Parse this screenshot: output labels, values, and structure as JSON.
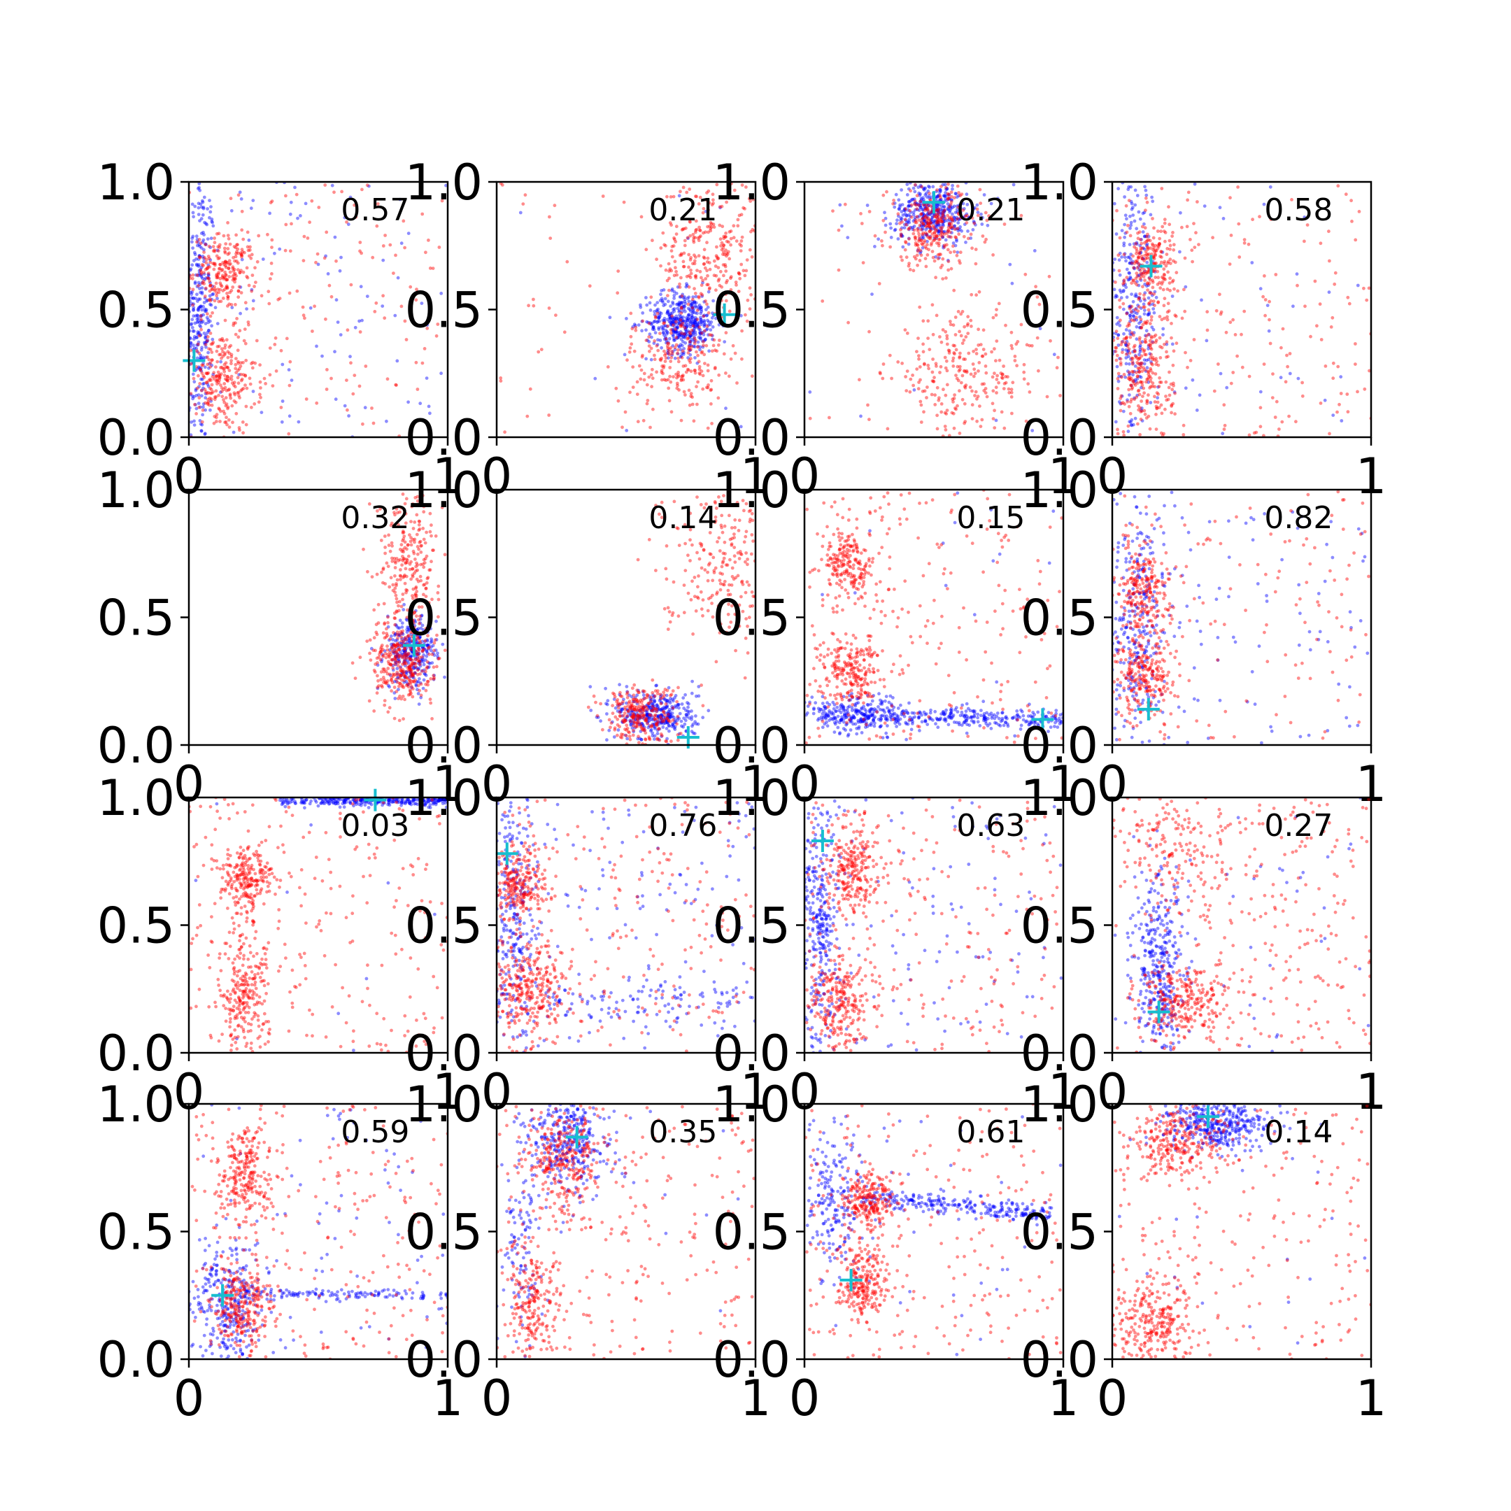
{
  "chart_data": {
    "type": "scatter",
    "grid": false,
    "rows": 4,
    "cols": 4,
    "xlim": [
      0,
      1
    ],
    "ylim": [
      0,
      1
    ],
    "x_ticks": [
      "0",
      "1"
    ],
    "y_ticks": [
      "0.0",
      "0.5",
      "1.0"
    ],
    "colors": {
      "blue_series": "#0000ff",
      "red_series": "#ff0000",
      "marker": "#17becf"
    },
    "panels": [
      {
        "label": "0.57",
        "marker": [
          0.02,
          0.3
        ],
        "red_clusters": [
          {
            "cx": 0.14,
            "cy": 0.65,
            "sx": 0.06,
            "sy": 0.07,
            "n": 220
          },
          {
            "cx": 0.12,
            "cy": 0.22,
            "sx": 0.07,
            "sy": 0.1,
            "n": 260
          }
        ],
        "blue_clusters": [
          {
            "cx": 0.04,
            "cy": 0.5,
            "sx": 0.03,
            "sy": 0.28,
            "n": 350
          }
        ],
        "red_spread": 160,
        "blue_spread": 90
      },
      {
        "label": "0.21",
        "marker": [
          0.88,
          0.48
        ],
        "red_clusters": [
          {
            "cx": 0.82,
            "cy": 0.72,
            "sx": 0.1,
            "sy": 0.16,
            "n": 300
          },
          {
            "cx": 0.7,
            "cy": 0.3,
            "sx": 0.09,
            "sy": 0.1,
            "n": 200
          }
        ],
        "blue_clusters": [
          {
            "cx": 0.72,
            "cy": 0.45,
            "sx": 0.07,
            "sy": 0.06,
            "n": 450
          }
        ],
        "red_spread": 60,
        "blue_spread": 10
      },
      {
        "label": "0.21",
        "marker": [
          0.5,
          0.92
        ],
        "red_clusters": [
          {
            "cx": 0.5,
            "cy": 0.82,
            "sx": 0.09,
            "sy": 0.08,
            "n": 300
          },
          {
            "cx": 0.62,
            "cy": 0.25,
            "sx": 0.15,
            "sy": 0.12,
            "n": 260
          }
        ],
        "blue_clusters": [
          {
            "cx": 0.5,
            "cy": 0.88,
            "sx": 0.08,
            "sy": 0.06,
            "n": 420
          }
        ],
        "red_spread": 40,
        "blue_spread": 20
      },
      {
        "label": "0.58",
        "marker": [
          0.15,
          0.67
        ],
        "red_clusters": [
          {
            "cx": 0.15,
            "cy": 0.68,
            "sx": 0.05,
            "sy": 0.09,
            "n": 220
          },
          {
            "cx": 0.12,
            "cy": 0.25,
            "sx": 0.06,
            "sy": 0.14,
            "n": 260
          }
        ],
        "blue_clusters": [
          {
            "cx": 0.08,
            "cy": 0.5,
            "sx": 0.05,
            "sy": 0.26,
            "n": 320
          }
        ],
        "red_spread": 180,
        "blue_spread": 50
      },
      {
        "label": "0.32",
        "marker": [
          0.87,
          0.39
        ],
        "red_clusters": [
          {
            "cx": 0.85,
            "cy": 0.72,
            "sx": 0.06,
            "sy": 0.14,
            "n": 250
          },
          {
            "cx": 0.82,
            "cy": 0.32,
            "sx": 0.06,
            "sy": 0.08,
            "n": 320
          }
        ],
        "blue_clusters": [
          {
            "cx": 0.86,
            "cy": 0.36,
            "sx": 0.05,
            "sy": 0.07,
            "n": 320
          }
        ],
        "red_spread": 0,
        "blue_spread": 0
      },
      {
        "label": "0.14",
        "marker": [
          0.74,
          0.03
        ],
        "red_clusters": [
          {
            "cx": 0.88,
            "cy": 0.72,
            "sx": 0.12,
            "sy": 0.16,
            "n": 260
          },
          {
            "cx": 0.55,
            "cy": 0.12,
            "sx": 0.07,
            "sy": 0.06,
            "n": 260
          }
        ],
        "blue_clusters": [
          {
            "cx": 0.62,
            "cy": 0.12,
            "sx": 0.08,
            "sy": 0.05,
            "n": 360
          }
        ],
        "red_spread": 0,
        "blue_spread": 0
      },
      {
        "label": "0.15",
        "marker": [
          0.92,
          0.1
        ],
        "red_clusters": [
          {
            "cx": 0.17,
            "cy": 0.7,
            "sx": 0.05,
            "sy": 0.07,
            "n": 200
          },
          {
            "cx": 0.18,
            "cy": 0.3,
            "sx": 0.06,
            "sy": 0.07,
            "n": 220
          }
        ],
        "blue_clusters": [
          {
            "cx": 0.2,
            "cy": 0.12,
            "sx": 0.1,
            "sy": 0.04,
            "n": 180
          }
        ],
        "blue_streak": {
          "x0": 0.05,
          "y0": 0.12,
          "x1": 1.0,
          "y1": 0.1,
          "n": 360,
          "w": 0.02
        },
        "red_spread": 220,
        "blue_spread": 20
      },
      {
        "label": "0.82",
        "marker": [
          0.14,
          0.14
        ],
        "red_clusters": [
          {
            "cx": 0.12,
            "cy": 0.62,
            "sx": 0.05,
            "sy": 0.09,
            "n": 220
          },
          {
            "cx": 0.13,
            "cy": 0.28,
            "sx": 0.06,
            "sy": 0.09,
            "n": 240
          }
        ],
        "blue_clusters": [
          {
            "cx": 0.1,
            "cy": 0.45,
            "sx": 0.05,
            "sy": 0.25,
            "n": 260
          }
        ],
        "red_spread": 130,
        "blue_spread": 110
      },
      {
        "label": "0.03",
        "marker": [
          0.72,
          0.99
        ],
        "red_clusters": [
          {
            "cx": 0.22,
            "cy": 0.68,
            "sx": 0.05,
            "sy": 0.07,
            "n": 220
          },
          {
            "cx": 0.21,
            "cy": 0.22,
            "sx": 0.05,
            "sy": 0.12,
            "n": 240
          }
        ],
        "blue_clusters": [],
        "blue_streak": {
          "x0": 0.35,
          "y0": 0.99,
          "x1": 1.0,
          "y1": 0.99,
          "n": 360,
          "w": 0.012
        },
        "red_spread": 240,
        "blue_spread": 10
      },
      {
        "label": "0.76",
        "marker": [
          0.04,
          0.78
        ],
        "red_clusters": [
          {
            "cx": 0.09,
            "cy": 0.66,
            "sx": 0.05,
            "sy": 0.07,
            "n": 220
          },
          {
            "cx": 0.12,
            "cy": 0.25,
            "sx": 0.07,
            "sy": 0.1,
            "n": 280
          }
        ],
        "blue_clusters": [
          {
            "cx": 0.06,
            "cy": 0.5,
            "sx": 0.05,
            "sy": 0.26,
            "n": 300
          }
        ],
        "blue_streak": {
          "x0": 0.1,
          "y0": 0.2,
          "x1": 0.95,
          "y1": 0.22,
          "n": 100,
          "w": 0.04
        },
        "red_spread": 220,
        "blue_spread": 150
      },
      {
        "label": "0.63",
        "marker": [
          0.07,
          0.83
        ],
        "red_clusters": [
          {
            "cx": 0.19,
            "cy": 0.72,
            "sx": 0.05,
            "sy": 0.1,
            "n": 240
          },
          {
            "cx": 0.14,
            "cy": 0.2,
            "sx": 0.06,
            "sy": 0.1,
            "n": 240
          }
        ],
        "blue_clusters": [
          {
            "cx": 0.06,
            "cy": 0.5,
            "sx": 0.04,
            "sy": 0.28,
            "n": 340
          }
        ],
        "red_spread": 220,
        "blue_spread": 110
      },
      {
        "label": "0.27",
        "marker": [
          0.18,
          0.16
        ],
        "red_clusters": [
          {
            "cx": 0.28,
            "cy": 0.2,
            "sx": 0.09,
            "sy": 0.07,
            "n": 260
          },
          {
            "cx": 0.25,
            "cy": 0.8,
            "sx": 0.12,
            "sy": 0.12,
            "n": 160
          }
        ],
        "blue_clusters": [
          {
            "cx": 0.18,
            "cy": 0.33,
            "sx": 0.05,
            "sy": 0.18,
            "n": 360
          }
        ],
        "red_spread": 260,
        "blue_spread": 40
      },
      {
        "label": "0.59",
        "marker": [
          0.13,
          0.25
        ],
        "red_clusters": [
          {
            "cx": 0.22,
            "cy": 0.72,
            "sx": 0.05,
            "sy": 0.1,
            "n": 240
          },
          {
            "cx": 0.2,
            "cy": 0.2,
            "sx": 0.06,
            "sy": 0.1,
            "n": 260
          }
        ],
        "blue_clusters": [
          {
            "cx": 0.15,
            "cy": 0.22,
            "sx": 0.07,
            "sy": 0.12,
            "n": 300
          }
        ],
        "blue_streak": {
          "x0": 0.2,
          "y0": 0.26,
          "x1": 1.0,
          "y1": 0.25,
          "n": 120,
          "w": 0.01
        },
        "red_spread": 200,
        "blue_spread": 80
      },
      {
        "label": "0.35",
        "marker": [
          0.31,
          0.87
        ],
        "red_clusters": [
          {
            "cx": 0.26,
            "cy": 0.78,
            "sx": 0.07,
            "sy": 0.1,
            "n": 260
          },
          {
            "cx": 0.14,
            "cy": 0.22,
            "sx": 0.06,
            "sy": 0.12,
            "n": 200
          }
        ],
        "blue_clusters": [
          {
            "cx": 0.28,
            "cy": 0.84,
            "sx": 0.08,
            "sy": 0.1,
            "n": 340
          },
          {
            "cx": 0.1,
            "cy": 0.45,
            "sx": 0.04,
            "sy": 0.2,
            "n": 100
          }
        ],
        "red_spread": 240,
        "blue_spread": 20
      },
      {
        "label": "0.61",
        "marker": [
          0.18,
          0.31
        ],
        "red_clusters": [
          {
            "cx": 0.25,
            "cy": 0.62,
            "sx": 0.05,
            "sy": 0.05,
            "n": 220
          },
          {
            "cx": 0.22,
            "cy": 0.3,
            "sx": 0.05,
            "sy": 0.07,
            "n": 220
          }
        ],
        "blue_clusters": [
          {
            "cx": 0.12,
            "cy": 0.6,
            "sx": 0.06,
            "sy": 0.15,
            "n": 200
          }
        ],
        "blue_streak": {
          "x0": 0.22,
          "y0": 0.64,
          "x1": 0.95,
          "y1": 0.57,
          "n": 260,
          "w": 0.02
        },
        "red_spread": 220,
        "blue_spread": 30
      },
      {
        "label": "0.14",
        "marker": [
          0.37,
          0.95
        ],
        "red_clusters": [
          {
            "cx": 0.25,
            "cy": 0.85,
            "sx": 0.1,
            "sy": 0.07,
            "n": 260
          },
          {
            "cx": 0.17,
            "cy": 0.15,
            "sx": 0.08,
            "sy": 0.09,
            "n": 260
          }
        ],
        "blue_clusters": [
          {
            "cx": 0.4,
            "cy": 0.92,
            "sx": 0.1,
            "sy": 0.05,
            "n": 380
          }
        ],
        "red_spread": 200,
        "blue_spread": 20
      }
    ]
  }
}
